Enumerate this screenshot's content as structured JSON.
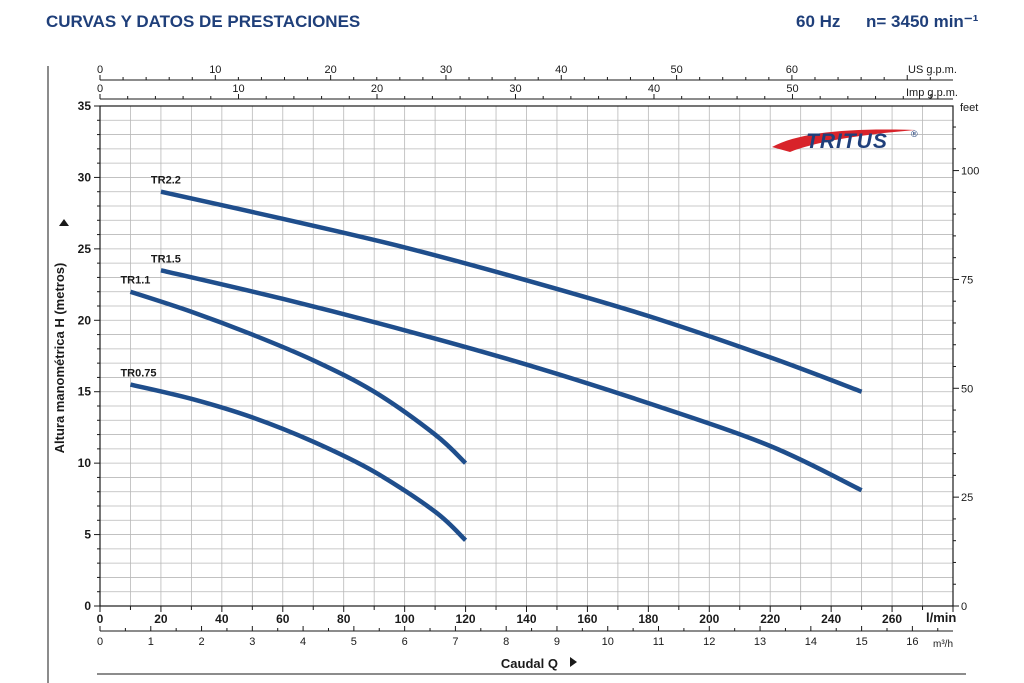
{
  "header": {
    "title": "CURVAS Y DATOS DE PRESTACIONES",
    "frequency": "60 Hz",
    "speed": "n= 3450 min⁻¹"
  },
  "brand": {
    "name": "TRITUS",
    "mark": "®",
    "color": "#1f3f7a",
    "swoosh_color": "#d8232a"
  },
  "colors": {
    "curve": "#1f4e8c",
    "grid": "#b8b8b8",
    "axis": "#1a1a1a"
  },
  "chart_data": {
    "type": "line",
    "title": "",
    "xlabel": "Caudal Q",
    "ylabel": "Altura manométrica H (metros)",
    "x_unit": "l/min",
    "xlim": [
      0,
      280
    ],
    "ylim": [
      0,
      35
    ],
    "x_ticks": [
      0,
      20,
      40,
      60,
      80,
      100,
      120,
      140,
      160,
      180,
      200,
      220,
      240,
      260
    ],
    "y_ticks": [
      0,
      5,
      10,
      15,
      20,
      25,
      30,
      35
    ],
    "grid": true,
    "secondary_axes": {
      "m3h": {
        "label": "m³/h",
        "ticks": [
          0,
          1,
          2,
          3,
          4,
          5,
          6,
          7,
          8,
          9,
          10,
          11,
          12,
          13,
          14,
          15,
          16
        ]
      },
      "us_gpm": {
        "label": "US g.p.m.",
        "ticks": [
          0,
          10,
          20,
          30,
          40,
          50,
          60
        ]
      },
      "imp_gpm": {
        "label": "Imp g.p.m.",
        "ticks": [
          0,
          10,
          20,
          30,
          40,
          50
        ]
      },
      "feet": {
        "label": "feet",
        "ticks": [
          0,
          25,
          50,
          75,
          100
        ]
      }
    },
    "series": [
      {
        "name": "TR0.75",
        "x": [
          10,
          30,
          50,
          70,
          90,
          110,
          120
        ],
        "y": [
          15.5,
          14.5,
          13.2,
          11.5,
          9.4,
          6.6,
          4.6
        ]
      },
      {
        "name": "TR1.1",
        "x": [
          10,
          30,
          50,
          70,
          90,
          110,
          120
        ],
        "y": [
          22,
          20.6,
          19,
          17.2,
          15,
          12,
          10
        ]
      },
      {
        "name": "TR1.5",
        "x": [
          20,
          60,
          100,
          140,
          180,
          220,
          250
        ],
        "y": [
          23.5,
          21.5,
          19.3,
          16.9,
          14.2,
          11.2,
          8.1
        ]
      },
      {
        "name": "TR2.2",
        "x": [
          20,
          60,
          100,
          140,
          180,
          220,
          250
        ],
        "y": [
          29,
          27.1,
          25.1,
          22.8,
          20.3,
          17.4,
          15
        ]
      }
    ]
  }
}
